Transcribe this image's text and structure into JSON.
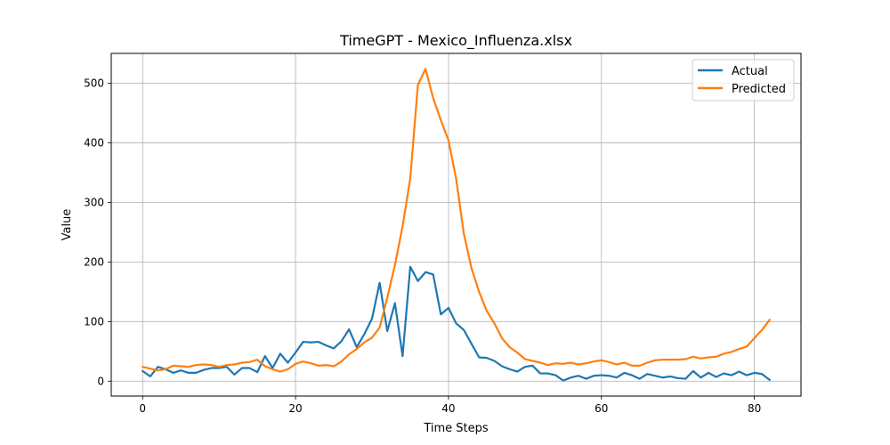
{
  "chart_data": {
    "type": "line",
    "title": "TimeGPT - Mexico_Influenza.xlsx",
    "xlabel": "Time Steps",
    "ylabel": "Value",
    "xlim": [
      -4.1,
      86.1
    ],
    "ylim": [
      -25,
      550
    ],
    "xticks": [
      0,
      20,
      40,
      60,
      80
    ],
    "yticks": [
      0,
      100,
      200,
      300,
      400,
      500
    ],
    "grid": true,
    "legend_position": "top-right",
    "series": [
      {
        "name": "Actual",
        "color": "#1f77b4",
        "x": [
          0,
          1,
          2,
          3,
          4,
          5,
          6,
          7,
          8,
          9,
          10,
          11,
          12,
          13,
          14,
          15,
          16,
          17,
          18,
          19,
          20,
          21,
          22,
          23,
          24,
          25,
          26,
          27,
          28,
          29,
          30,
          31,
          32,
          33,
          34,
          35,
          36,
          37,
          38,
          39,
          40,
          41,
          42,
          43,
          44,
          45,
          46,
          47,
          48,
          49,
          50,
          51,
          52,
          53,
          54,
          55,
          56,
          57,
          58,
          59,
          60,
          61,
          62,
          63,
          64,
          65,
          66,
          67,
          68,
          69,
          70,
          71,
          72,
          73,
          74,
          75,
          76,
          77,
          78,
          79,
          80,
          81,
          82
        ],
        "values": [
          17,
          8,
          24,
          20,
          14,
          18,
          14,
          14,
          19,
          22,
          22,
          24,
          11,
          22,
          22,
          15,
          42,
          22,
          46,
          31,
          48,
          66,
          65,
          66,
          60,
          55,
          67,
          87,
          57,
          79,
          105,
          165,
          84,
          131,
          42,
          192,
          168,
          183,
          179,
          112,
          123,
          97,
          86,
          63,
          40,
          39,
          34,
          25,
          20,
          16,
          24,
          26,
          13,
          13,
          10,
          1,
          6,
          9,
          4,
          9,
          10,
          9,
          6,
          14,
          10,
          4,
          12,
          9,
          6,
          8,
          5,
          4,
          17,
          6,
          14,
          7,
          13,
          10,
          16,
          10,
          14,
          12,
          2
        ]
      },
      {
        "name": "Predicted",
        "color": "#ff7f0e",
        "x": [
          0,
          1,
          2,
          3,
          4,
          5,
          6,
          7,
          8,
          9,
          10,
          11,
          12,
          13,
          14,
          15,
          16,
          17,
          18,
          19,
          20,
          21,
          22,
          23,
          24,
          25,
          26,
          27,
          28,
          29,
          30,
          31,
          32,
          33,
          34,
          35,
          36,
          37,
          38,
          39,
          40,
          41,
          42,
          43,
          44,
          45,
          46,
          47,
          48,
          49,
          50,
          51,
          52,
          53,
          54,
          55,
          56,
          57,
          58,
          59,
          60,
          61,
          62,
          63,
          64,
          65,
          66,
          67,
          68,
          69,
          70,
          71,
          72,
          73,
          74,
          75,
          76,
          77,
          78,
          79,
          80,
          81,
          82
        ],
        "values": [
          24,
          21,
          18,
          20,
          26,
          25,
          24,
          27,
          28,
          27,
          24,
          27,
          28,
          31,
          32,
          36,
          25,
          20,
          16,
          20,
          29,
          33,
          30,
          26,
          27,
          25,
          33,
          45,
          54,
          65,
          73,
          90,
          140,
          195,
          260,
          340,
          497,
          524,
          475,
          438,
          404,
          340,
          248,
          190,
          150,
          118,
          97,
          72,
          57,
          48,
          37,
          34,
          31,
          27,
          30,
          29,
          31,
          28,
          30,
          33,
          35,
          32,
          28,
          31,
          26,
          26,
          31,
          35,
          36,
          36,
          36,
          37,
          41,
          38,
          40,
          41,
          46,
          49,
          54,
          58,
          72,
          86,
          103
        ]
      }
    ]
  }
}
